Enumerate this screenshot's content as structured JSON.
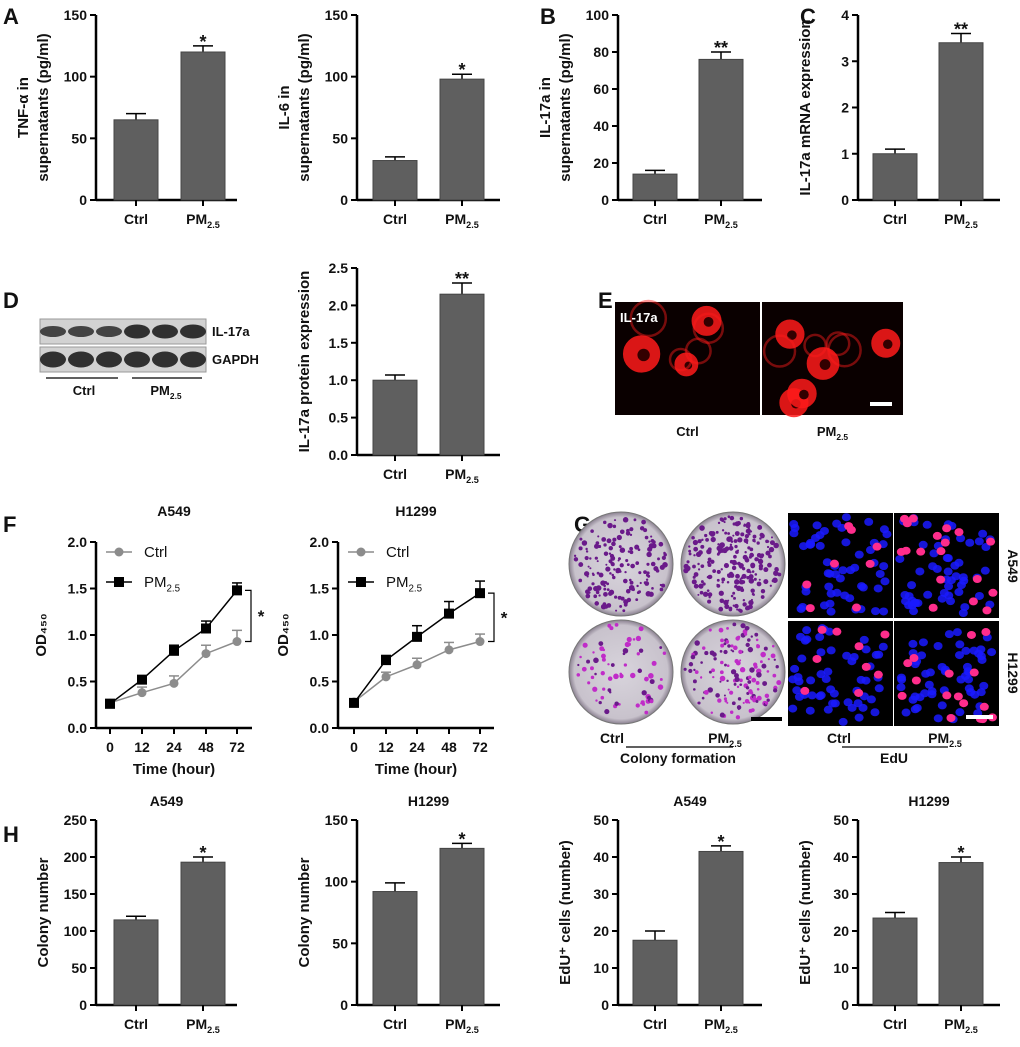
{
  "panel_letters": [
    "A",
    "B",
    "C",
    "D",
    "E",
    "F",
    "G",
    "H"
  ],
  "colors": {
    "bar": "#5f5f5f",
    "ctrl_line": "#8c8c8c",
    "pm_line": "#000000",
    "fluor_red": "#ff1a1a",
    "dapi_blue": "#1a1aff",
    "edu_pink": "#ff2d8c",
    "crystal_violet": "#6a1a8a"
  },
  "blot": {
    "bands": [
      "IL-17a",
      "GAPDH"
    ],
    "groups": [
      "Ctrl",
      "PM2.5"
    ]
  },
  "if_panel": {
    "stain_label": "IL-17a",
    "groups": [
      "Ctrl",
      "PM2.5"
    ]
  },
  "colony_panel": {
    "groups": [
      "Ctrl",
      "PM2.5"
    ],
    "caption": "Colony formation"
  },
  "edu_panel": {
    "groups": [
      "Ctrl",
      "PM2.5"
    ],
    "caption": "EdU",
    "rows": [
      "A549",
      "H1299"
    ]
  },
  "chart_data": [
    {
      "id": "A1",
      "type": "bar",
      "title": "",
      "ylabel": [
        "TNF-α in",
        "supernatants (pg/ml)"
      ],
      "categories": [
        "Ctrl",
        "PM2.5"
      ],
      "values": [
        65,
        120
      ],
      "errors": [
        5,
        5
      ],
      "ylim": [
        0,
        150
      ],
      "yticks": [
        0,
        50,
        100,
        150
      ],
      "significance": "*"
    },
    {
      "id": "A2",
      "type": "bar",
      "title": "",
      "ylabel": [
        "IL-6 in",
        "supernatants (pg/ml)"
      ],
      "categories": [
        "Ctrl",
        "PM2.5"
      ],
      "values": [
        32,
        98
      ],
      "errors": [
        3,
        4
      ],
      "ylim": [
        0,
        150
      ],
      "yticks": [
        0,
        50,
        100,
        150
      ],
      "significance": "*"
    },
    {
      "id": "B",
      "type": "bar",
      "title": "",
      "ylabel": [
        "IL-17a in",
        "supernatants (pg/ml)"
      ],
      "categories": [
        "Ctrl",
        "PM2.5"
      ],
      "values": [
        14,
        76
      ],
      "errors": [
        2,
        4
      ],
      "ylim": [
        0,
        100
      ],
      "yticks": [
        0,
        20,
        40,
        60,
        80,
        100
      ],
      "significance": "**"
    },
    {
      "id": "C",
      "type": "bar",
      "title": "",
      "ylabel": [
        "IL-17a mRNA expression"
      ],
      "categories": [
        "Ctrl",
        "PM2.5"
      ],
      "values": [
        1.0,
        3.4
      ],
      "errors": [
        0.1,
        0.2
      ],
      "ylim": [
        0,
        4
      ],
      "yticks": [
        0,
        1,
        2,
        3,
        4
      ],
      "significance": "**"
    },
    {
      "id": "D",
      "type": "bar",
      "title": "",
      "ylabel": [
        "IL-17a protein expression"
      ],
      "categories": [
        "Ctrl",
        "PM2.5"
      ],
      "values": [
        1.0,
        2.15
      ],
      "errors": [
        0.07,
        0.15
      ],
      "ylim": [
        0,
        2.5
      ],
      "yticks": [
        "0.0",
        "0.5",
        "1.0",
        "1.5",
        "2.0",
        "2.5"
      ],
      "significance": "**"
    },
    {
      "id": "F1",
      "type": "line",
      "title": "A549",
      "ylabel": [
        "OD₄₅₀"
      ],
      "xlabel": "Time (hour)",
      "x": [
        "0",
        "12",
        "24",
        "48",
        "72"
      ],
      "ylim": [
        0,
        2
      ],
      "yticks": [
        "0.0",
        "0.5",
        "1.0",
        "1.5",
        "2.0"
      ],
      "legend": "top-left",
      "significance": "*",
      "series": [
        {
          "name": "Ctrl",
          "values": [
            0.27,
            0.38,
            0.48,
            0.8,
            0.93
          ],
          "errors": [
            0.04,
            0.06,
            0.08,
            0.09,
            0.12
          ]
        },
        {
          "name": "PM2.5",
          "values": [
            0.26,
            0.52,
            0.83,
            1.07,
            1.48
          ],
          "errors": [
            0.03,
            0.03,
            0.06,
            0.08,
            0.08
          ]
        }
      ]
    },
    {
      "id": "F2",
      "type": "line",
      "title": "H1299",
      "ylabel": [
        "OD₄₅₀"
      ],
      "xlabel": "Time (hour)",
      "x": [
        "0",
        "12",
        "24",
        "48",
        "72"
      ],
      "ylim": [
        0,
        2
      ],
      "yticks": [
        "0.0",
        "0.5",
        "1.0",
        "1.5",
        "2.0"
      ],
      "legend": "top-left",
      "significance": "*",
      "series": [
        {
          "name": "Ctrl",
          "values": [
            0.28,
            0.55,
            0.68,
            0.84,
            0.93
          ],
          "errors": [
            0.03,
            0.05,
            0.07,
            0.08,
            0.08
          ]
        },
        {
          "name": "PM2.5",
          "values": [
            0.27,
            0.73,
            0.98,
            1.23,
            1.45
          ],
          "errors": [
            0.03,
            0.05,
            0.12,
            0.13,
            0.13
          ]
        }
      ]
    },
    {
      "id": "H1",
      "type": "bar",
      "title": "A549",
      "ylabel": [
        "Colony number"
      ],
      "categories": [
        "Ctrl",
        "PM2.5"
      ],
      "values": [
        115,
        193
      ],
      "errors": [
        5,
        7
      ],
      "ylim": [
        0,
        250
      ],
      "yticks": [
        0,
        50,
        100,
        150,
        200,
        250
      ],
      "significance": "*"
    },
    {
      "id": "H2",
      "type": "bar",
      "title": "H1299",
      "ylabel": [
        "Colony number"
      ],
      "categories": [
        "Ctrl",
        "PM2.5"
      ],
      "values": [
        92,
        127
      ],
      "errors": [
        7,
        4
      ],
      "ylim": [
        0,
        150
      ],
      "yticks": [
        0,
        50,
        100,
        150
      ],
      "significance": "*"
    },
    {
      "id": "H3",
      "type": "bar",
      "title": "A549",
      "ylabel": [
        "EdU⁺ cells (number)"
      ],
      "categories": [
        "Ctrl",
        "PM2.5"
      ],
      "values": [
        17.5,
        41.5
      ],
      "errors": [
        2.5,
        1.5
      ],
      "ylim": [
        0,
        50
      ],
      "yticks": [
        0,
        10,
        20,
        30,
        40,
        50
      ],
      "significance": "*"
    },
    {
      "id": "H4",
      "type": "bar",
      "title": "H1299",
      "ylabel": [
        "EdU⁺ cells (number)"
      ],
      "categories": [
        "Ctrl",
        "PM2.5"
      ],
      "values": [
        23.5,
        38.5
      ],
      "errors": [
        1.5,
        1.5
      ],
      "ylim": [
        0,
        50
      ],
      "yticks": [
        0,
        10,
        20,
        30,
        40,
        50
      ],
      "significance": "*"
    }
  ]
}
